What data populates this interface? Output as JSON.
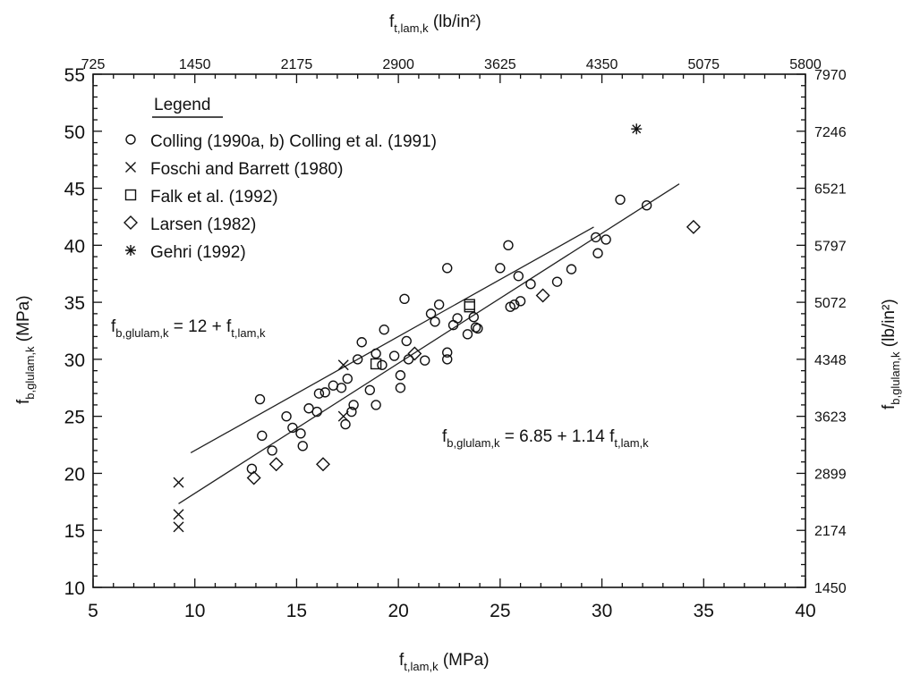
{
  "chart_data": {
    "type": "scatter",
    "xlabel": "f",
    "xlabel_sub": "t,lam,k",
    "xlabel_unit": " (MPa)",
    "ylabel": "f",
    "ylabel_sub": "b,glulam,k",
    "ylabel_unit": " (MPa)",
    "x2label": "f",
    "x2label_sub": "t,lam,k",
    "x2label_unit": " (lb/in²)",
    "y2label": "f",
    "y2label_sub": "b,glulam,k",
    "y2label_unit": " (lb/in²)",
    "xlim": [
      5,
      40
    ],
    "ylim": [
      10,
      55
    ],
    "x_ticks": [
      "5",
      "10",
      "15",
      "20",
      "25",
      "30",
      "35",
      "40"
    ],
    "y_ticks": [
      "10",
      "15",
      "20",
      "25",
      "30",
      "35",
      "40",
      "45",
      "50",
      "55"
    ],
    "x2_ticks": [
      "725",
      "1450",
      "2175",
      "2900",
      "3625",
      "4350",
      "5075",
      "5800"
    ],
    "y2_ticks": [
      "1450",
      "2174",
      "2899",
      "3623",
      "4348",
      "5072",
      "5797",
      "6521",
      "7246",
      "7970"
    ],
    "legend_title": "Legend",
    "legend_position": "top-left",
    "grid": false,
    "series": [
      {
        "name": "Colling (1990a, b) Colling et al. (1991)",
        "marker": "circle",
        "points": [
          [
            13.2,
            26.5
          ],
          [
            13.3,
            23.3
          ],
          [
            13.8,
            22.0
          ],
          [
            12.8,
            20.4
          ],
          [
            14.5,
            25.0
          ],
          [
            14.8,
            24.0
          ],
          [
            15.2,
            23.5
          ],
          [
            15.3,
            22.4
          ],
          [
            15.6,
            25.7
          ],
          [
            16.0,
            25.4
          ],
          [
            16.1,
            27.0
          ],
          [
            16.4,
            27.1
          ],
          [
            16.8,
            27.7
          ],
          [
            17.2,
            27.5
          ],
          [
            17.5,
            28.3
          ],
          [
            17.8,
            26.0
          ],
          [
            17.7,
            25.4
          ],
          [
            17.4,
            24.3
          ],
          [
            18.0,
            30.0
          ],
          [
            18.2,
            31.5
          ],
          [
            18.6,
            27.3
          ],
          [
            18.9,
            26.0
          ],
          [
            18.9,
            30.5
          ],
          [
            19.2,
            29.5
          ],
          [
            19.3,
            32.6
          ],
          [
            19.8,
            30.3
          ],
          [
            20.1,
            27.5
          ],
          [
            20.1,
            28.6
          ],
          [
            20.3,
            35.3
          ],
          [
            20.4,
            31.6
          ],
          [
            20.5,
            30.0
          ],
          [
            21.3,
            29.9
          ],
          [
            21.6,
            34.0
          ],
          [
            21.8,
            33.3
          ],
          [
            22.0,
            34.8
          ],
          [
            22.4,
            30.0
          ],
          [
            22.4,
            30.6
          ],
          [
            22.4,
            38.0
          ],
          [
            22.7,
            33.0
          ],
          [
            22.9,
            33.6
          ],
          [
            23.4,
            32.2
          ],
          [
            23.7,
            33.7
          ],
          [
            23.8,
            32.8
          ],
          [
            23.9,
            32.7
          ],
          [
            25.0,
            38.0
          ],
          [
            25.4,
            40.0
          ],
          [
            25.5,
            34.6
          ],
          [
            25.7,
            34.8
          ],
          [
            25.9,
            37.3
          ],
          [
            26.0,
            35.1
          ],
          [
            26.5,
            36.6
          ],
          [
            27.8,
            36.8
          ],
          [
            28.5,
            37.9
          ],
          [
            29.7,
            40.7
          ],
          [
            29.8,
            39.3
          ],
          [
            30.2,
            40.5
          ],
          [
            30.9,
            44.0
          ],
          [
            32.2,
            43.5
          ]
        ]
      },
      {
        "name": "Foschi and Barrett (1980)",
        "marker": "x",
        "points": [
          [
            9.2,
            19.2
          ],
          [
            9.2,
            16.4
          ],
          [
            9.2,
            15.3
          ],
          [
            17.3,
            29.5
          ],
          [
            17.3,
            25.0
          ]
        ]
      },
      {
        "name": "Falk et al. (1992)",
        "marker": "square",
        "points": [
          [
            18.9,
            29.6
          ],
          [
            23.5,
            34.8
          ],
          [
            23.5,
            34.6
          ]
        ]
      },
      {
        "name": "Larsen (1982)",
        "marker": "diamond",
        "points": [
          [
            12.9,
            19.6
          ],
          [
            14.0,
            20.8
          ],
          [
            16.3,
            20.8
          ],
          [
            20.8,
            30.5
          ],
          [
            27.1,
            35.6
          ],
          [
            34.5,
            41.6
          ]
        ]
      },
      {
        "name": "Gehri (1992)",
        "marker": "asterisk",
        "points": [
          [
            31.7,
            50.2
          ]
        ]
      }
    ],
    "lines": [
      {
        "label": "f",
        "label_sub1": "b,glulam,k",
        "label_mid": " = 12 + f",
        "label_sub2": "t,lam,k",
        "x_range": [
          9.8,
          29.6
        ]
      },
      {
        "label": "f",
        "label_sub1": "b,glulam,k",
        "label_mid": " = 6.85 + 1.14 f",
        "label_sub2": "t,lam,k",
        "x_range": [
          9.2,
          33.8
        ]
      }
    ]
  }
}
